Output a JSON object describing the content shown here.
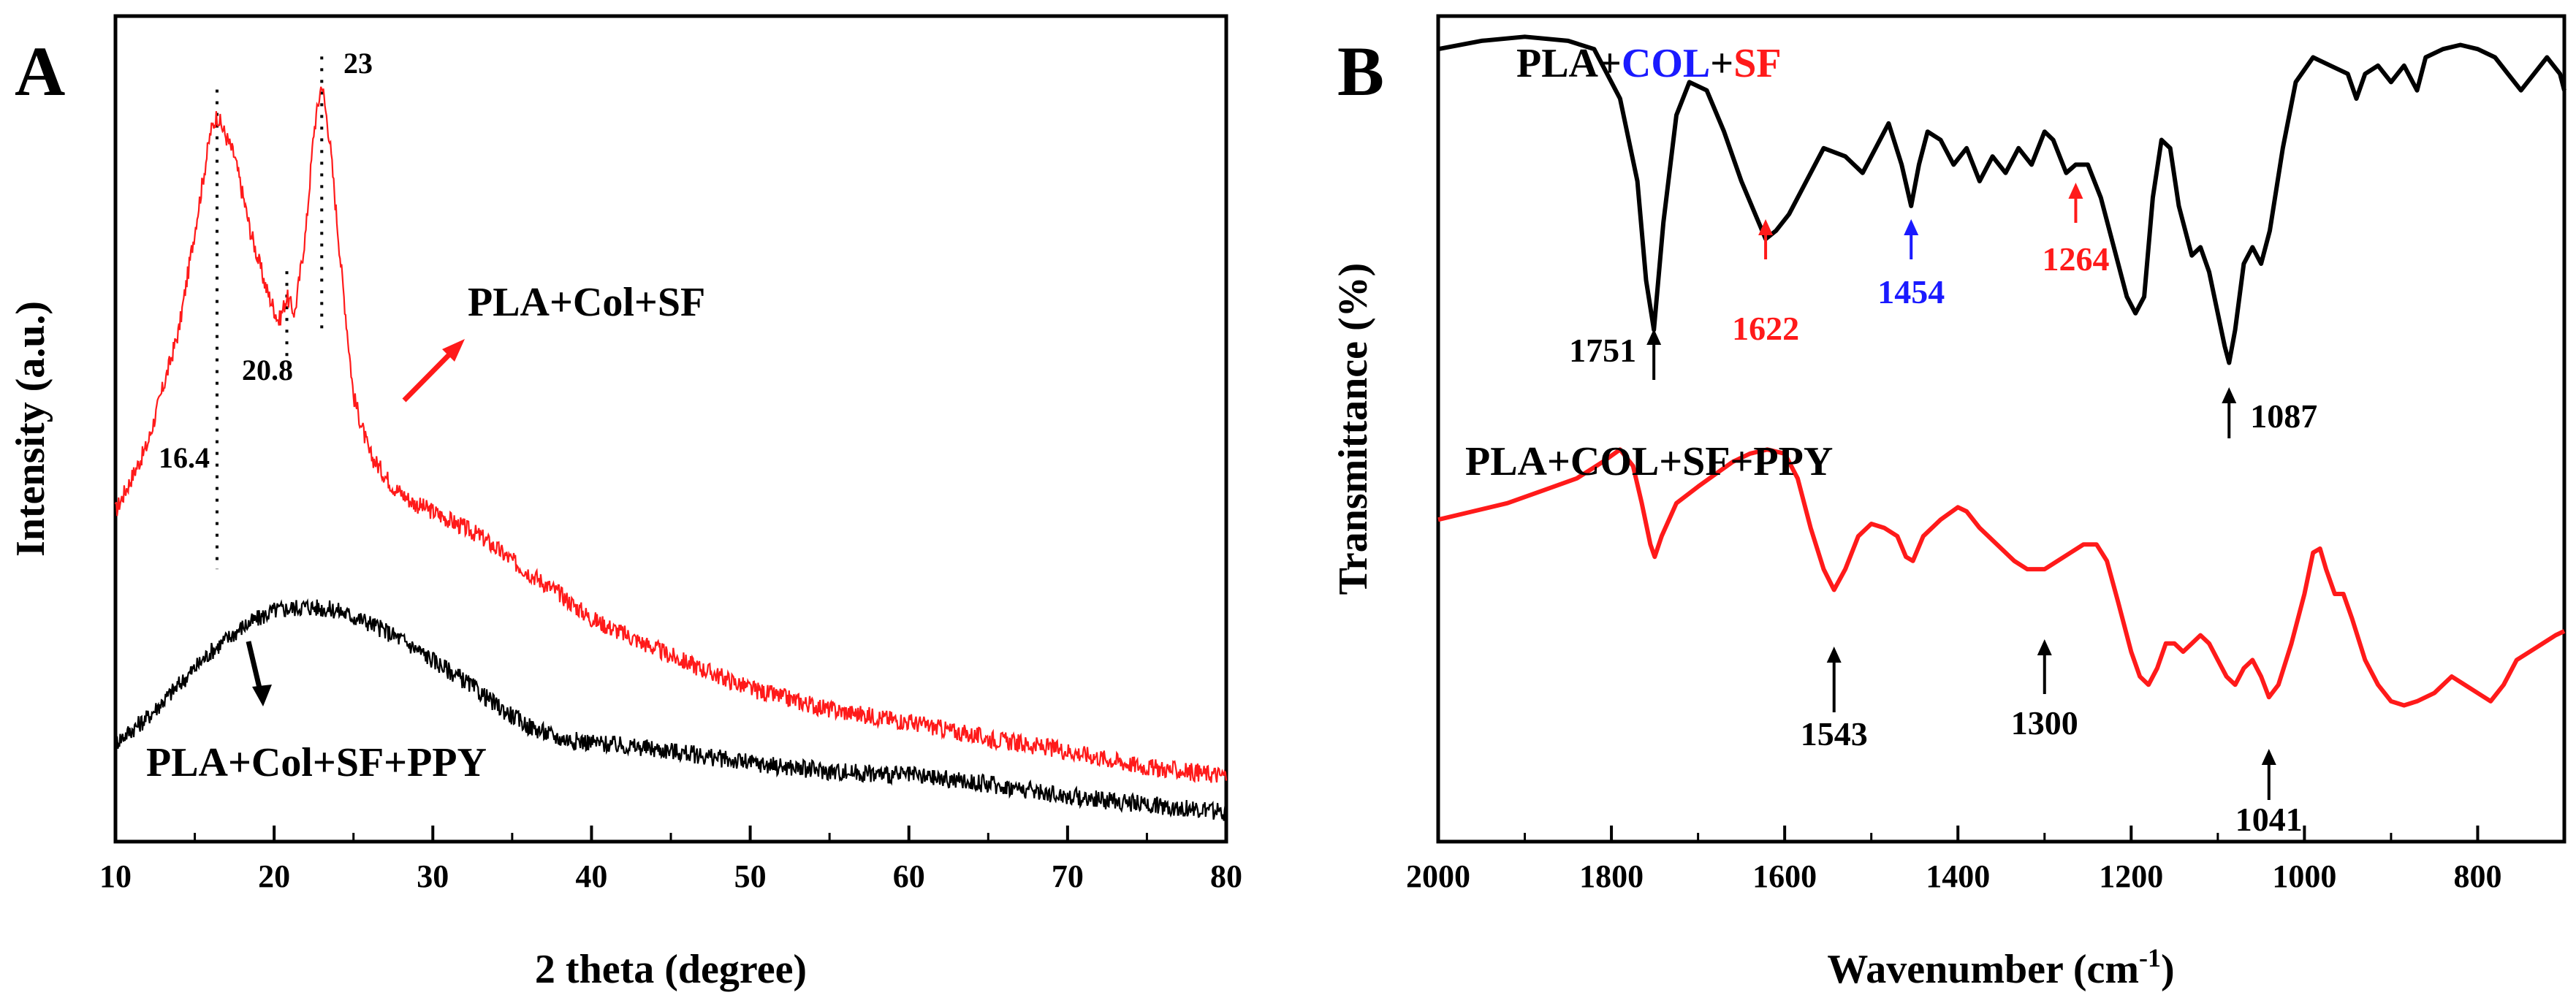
{
  "colors": {
    "axis": "#000000",
    "black_series": "#000000",
    "red_series": "#ff1a1a",
    "blue_annot": "#1a1aff",
    "background": "#ffffff"
  },
  "chart_data": [
    {
      "panel_label": "A",
      "type": "line",
      "title": "",
      "xlabel": "2 theta (degree)",
      "ylabel": "Intensity (a.u.)",
      "xlim": [
        10,
        80
      ],
      "xticks": [
        "10",
        "20",
        "30",
        "40",
        "50",
        "60",
        "70",
        "80"
      ],
      "y_ticks_labeled": false,
      "series": [
        {
          "name": "PLA+Col+SF",
          "color": "red",
          "points": [
            [
              10,
              0.4
            ],
            [
              12,
              0.48
            ],
            [
              14,
              0.62
            ],
            [
              15,
              0.74
            ],
            [
              16,
              0.86
            ],
            [
              16.4,
              0.88
            ],
            [
              17.5,
              0.83
            ],
            [
              18.5,
              0.74
            ],
            [
              19.5,
              0.67
            ],
            [
              20.3,
              0.63
            ],
            [
              20.8,
              0.66
            ],
            [
              21.3,
              0.64
            ],
            [
              22,
              0.74
            ],
            [
              22.5,
              0.86
            ],
            [
              23,
              0.92
            ],
            [
              23.5,
              0.85
            ],
            [
              24.2,
              0.7
            ],
            [
              25,
              0.54
            ],
            [
              26,
              0.47
            ],
            [
              27.5,
              0.43
            ],
            [
              28.8,
              0.41
            ],
            [
              30,
              0.4
            ],
            [
              33,
              0.37
            ],
            [
              35,
              0.34
            ],
            [
              38,
              0.3
            ],
            [
              40,
              0.27
            ],
            [
              45,
              0.225
            ],
            [
              50,
              0.185
            ],
            [
              55,
              0.16
            ],
            [
              60,
              0.145
            ],
            [
              65,
              0.125
            ],
            [
              70,
              0.11
            ],
            [
              75,
              0.09
            ],
            [
              80,
              0.08
            ]
          ]
        },
        {
          "name": "PLA+Col+SF+PPY",
          "color": "black",
          "points": [
            [
              10,
              0.12
            ],
            [
              12,
              0.15
            ],
            [
              14,
              0.19
            ],
            [
              16,
              0.23
            ],
            [
              18,
              0.26
            ],
            [
              20,
              0.28
            ],
            [
              22,
              0.285
            ],
            [
              24,
              0.28
            ],
            [
              26,
              0.265
            ],
            [
              28,
              0.245
            ],
            [
              30,
              0.22
            ],
            [
              32,
              0.195
            ],
            [
              34,
              0.165
            ],
            [
              36,
              0.14
            ],
            [
              38,
              0.125
            ],
            [
              40,
              0.12
            ],
            [
              45,
              0.11
            ],
            [
              50,
              0.095
            ],
            [
              55,
              0.085
            ],
            [
              60,
              0.08
            ],
            [
              65,
              0.07
            ],
            [
              70,
              0.055
            ],
            [
              75,
              0.045
            ],
            [
              80,
              0.035
            ]
          ]
        }
      ],
      "annotations": [
        {
          "text": "16.4",
          "x": 16.4
        },
        {
          "text": "20.8",
          "x": 20.8
        },
        {
          "text": "23",
          "x": 23
        }
      ],
      "series_labels": [
        "PLA+Col+SF",
        "PLA+Col+SF+PPY"
      ]
    },
    {
      "panel_label": "B",
      "type": "line",
      "title": "",
      "xlabel_main": "Wavenumber (cm",
      "xlabel_sup": "-1",
      "xlabel_close": ")",
      "ylabel": "Transmittance (%)",
      "xlim": [
        2000,
        700
      ],
      "xticks": [
        "2000",
        "1800",
        "1600",
        "1400",
        "1200",
        "1000",
        "800"
      ],
      "y_ticks_labeled": false,
      "legend_top": {
        "part1": "PLA+",
        "part2": "COL",
        "part3": "+",
        "part4": "SF"
      },
      "legend_bottom": "PLA+COL+SF+PPY",
      "series": [
        {
          "name": "PLA+COL+SF",
          "color": "black",
          "points": [
            [
              2000,
              0.96
            ],
            [
              1950,
              0.97
            ],
            [
              1900,
              0.975
            ],
            [
              1850,
              0.97
            ],
            [
              1820,
              0.96
            ],
            [
              1790,
              0.9
            ],
            [
              1770,
              0.8
            ],
            [
              1760,
              0.68
            ],
            [
              1751,
              0.62
            ],
            [
              1740,
              0.75
            ],
            [
              1725,
              0.88
            ],
            [
              1710,
              0.92
            ],
            [
              1690,
              0.91
            ],
            [
              1670,
              0.86
            ],
            [
              1650,
              0.8
            ],
            [
              1630,
              0.75
            ],
            [
              1622,
              0.73
            ],
            [
              1610,
              0.74
            ],
            [
              1595,
              0.76
            ],
            [
              1575,
              0.8
            ],
            [
              1555,
              0.84
            ],
            [
              1530,
              0.83
            ],
            [
              1510,
              0.81
            ],
            [
              1495,
              0.84
            ],
            [
              1480,
              0.87
            ],
            [
              1465,
              0.82
            ],
            [
              1454,
              0.77
            ],
            [
              1445,
              0.82
            ],
            [
              1435,
              0.86
            ],
            [
              1420,
              0.85
            ],
            [
              1405,
              0.82
            ],
            [
              1390,
              0.84
            ],
            [
              1375,
              0.8
            ],
            [
              1360,
              0.83
            ],
            [
              1345,
              0.81
            ],
            [
              1330,
              0.84
            ],
            [
              1315,
              0.82
            ],
            [
              1300,
              0.86
            ],
            [
              1290,
              0.85
            ],
            [
              1275,
              0.81
            ],
            [
              1264,
              0.82
            ],
            [
              1250,
              0.82
            ],
            [
              1235,
              0.78
            ],
            [
              1220,
              0.72
            ],
            [
              1205,
              0.66
            ],
            [
              1195,
              0.64
            ],
            [
              1185,
              0.66
            ],
            [
              1175,
              0.78
            ],
            [
              1165,
              0.85
            ],
            [
              1155,
              0.84
            ],
            [
              1145,
              0.77
            ],
            [
              1130,
              0.71
            ],
            [
              1120,
              0.72
            ],
            [
              1110,
              0.69
            ],
            [
              1100,
              0.64
            ],
            [
              1092,
              0.6
            ],
            [
              1087,
              0.58
            ],
            [
              1080,
              0.62
            ],
            [
              1070,
              0.7
            ],
            [
              1060,
              0.72
            ],
            [
              1050,
              0.7
            ],
            [
              1040,
              0.74
            ],
            [
              1025,
              0.84
            ],
            [
              1010,
              0.92
            ],
            [
              990,
              0.95
            ],
            [
              970,
              0.94
            ],
            [
              950,
              0.93
            ],
            [
              940,
              0.9
            ],
            [
              930,
              0.93
            ],
            [
              915,
              0.94
            ],
            [
              900,
              0.92
            ],
            [
              885,
              0.94
            ],
            [
              870,
              0.91
            ],
            [
              860,
              0.95
            ],
            [
              840,
              0.96
            ],
            [
              820,
              0.965
            ],
            [
              800,
              0.96
            ],
            [
              780,
              0.95
            ],
            [
              765,
              0.93
            ],
            [
              750,
              0.91
            ],
            [
              735,
              0.93
            ],
            [
              720,
              0.95
            ],
            [
              705,
              0.93
            ],
            [
              700,
              0.91
            ]
          ]
        },
        {
          "name": "PLA+COL+SF+PPY",
          "color": "red",
          "points": [
            [
              2000,
              0.39
            ],
            [
              1960,
              0.4
            ],
            [
              1920,
              0.41
            ],
            [
              1880,
              0.425
            ],
            [
              1840,
              0.44
            ],
            [
              1810,
              0.46
            ],
            [
              1790,
              0.475
            ],
            [
              1775,
              0.455
            ],
            [
              1765,
              0.41
            ],
            [
              1755,
              0.36
            ],
            [
              1750,
              0.345
            ],
            [
              1742,
              0.37
            ],
            [
              1725,
              0.41
            ],
            [
              1700,
              0.43
            ],
            [
              1680,
              0.445
            ],
            [
              1660,
              0.46
            ],
            [
              1640,
              0.47
            ],
            [
              1620,
              0.475
            ],
            [
              1600,
              0.47
            ],
            [
              1585,
              0.44
            ],
            [
              1570,
              0.38
            ],
            [
              1555,
              0.33
            ],
            [
              1543,
              0.305
            ],
            [
              1530,
              0.33
            ],
            [
              1515,
              0.37
            ],
            [
              1500,
              0.385
            ],
            [
              1485,
              0.38
            ],
            [
              1470,
              0.37
            ],
            [
              1460,
              0.345
            ],
            [
              1452,
              0.34
            ],
            [
              1440,
              0.37
            ],
            [
              1420,
              0.39
            ],
            [
              1400,
              0.405
            ],
            [
              1390,
              0.4
            ],
            [
              1375,
              0.38
            ],
            [
              1355,
              0.36
            ],
            [
              1335,
              0.34
            ],
            [
              1320,
              0.33
            ],
            [
              1300,
              0.33
            ],
            [
              1285,
              0.34
            ],
            [
              1270,
              0.35
            ],
            [
              1255,
              0.36
            ],
            [
              1240,
              0.36
            ],
            [
              1228,
              0.34
            ],
            [
              1215,
              0.29
            ],
            [
              1200,
              0.23
            ],
            [
              1190,
              0.2
            ],
            [
              1180,
              0.19
            ],
            [
              1170,
              0.21
            ],
            [
              1160,
              0.24
            ],
            [
              1150,
              0.24
            ],
            [
              1140,
              0.23
            ],
            [
              1130,
              0.24
            ],
            [
              1120,
              0.25
            ],
            [
              1110,
              0.24
            ],
            [
              1100,
              0.22
            ],
            [
              1090,
              0.2
            ],
            [
              1080,
              0.19
            ],
            [
              1070,
              0.21
            ],
            [
              1060,
              0.22
            ],
            [
              1050,
              0.2
            ],
            [
              1041,
              0.175
            ],
            [
              1030,
              0.19
            ],
            [
              1015,
              0.24
            ],
            [
              1000,
              0.3
            ],
            [
              990,
              0.35
            ],
            [
              982,
              0.355
            ],
            [
              975,
              0.33
            ],
            [
              965,
              0.3
            ],
            [
              955,
              0.3
            ],
            [
              945,
              0.27
            ],
            [
              930,
              0.22
            ],
            [
              915,
              0.19
            ],
            [
              900,
              0.17
            ],
            [
              885,
              0.165
            ],
            [
              870,
              0.17
            ],
            [
              850,
              0.18
            ],
            [
              830,
              0.2
            ],
            [
              815,
              0.19
            ],
            [
              800,
              0.18
            ],
            [
              785,
              0.17
            ],
            [
              770,
              0.19
            ],
            [
              755,
              0.22
            ],
            [
              740,
              0.23
            ],
            [
              725,
              0.24
            ],
            [
              710,
              0.25
            ],
            [
              700,
              0.255
            ]
          ]
        }
      ],
      "annotations": [
        {
          "text": "1751",
          "x": 1751,
          "color": "black"
        },
        {
          "text": "1622",
          "x": 1622,
          "color": "red"
        },
        {
          "text": "1454",
          "x": 1454,
          "color": "blue"
        },
        {
          "text": "1264",
          "x": 1264,
          "color": "red"
        },
        {
          "text": "1087",
          "x": 1087,
          "color": "black"
        },
        {
          "text": "1543",
          "x": 1543,
          "color": "black"
        },
        {
          "text": "1300",
          "x": 1300,
          "color": "black"
        },
        {
          "text": "1041",
          "x": 1041,
          "color": "black"
        }
      ]
    }
  ]
}
